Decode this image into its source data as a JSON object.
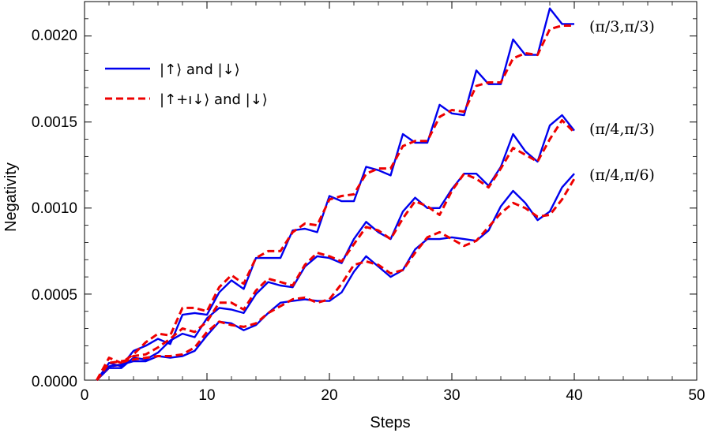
{
  "chart_data": {
    "type": "line",
    "xlabel": "Steps",
    "ylabel": "Negativity",
    "xlim": [
      0,
      50
    ],
    "ylim": [
      0,
      0.0022
    ],
    "xticks": [
      0,
      10,
      20,
      30,
      40,
      50
    ],
    "yticks": [
      0.0,
      0.0005,
      0.001,
      0.0015,
      0.002
    ],
    "xtick_labels": [
      "0",
      "10",
      "20",
      "30",
      "40",
      "50"
    ],
    "ytick_labels": [
      "0.0000",
      "0.0005",
      "0.0010",
      "0.0015",
      "0.0020"
    ],
    "grid": false,
    "legend_position": "top-left",
    "legend": [
      {
        "label": "|↑⟩ and |↓⟩",
        "color": "#0000ee",
        "style": "solid"
      },
      {
        "label": "|↑+ı↓⟩ and |↓⟩",
        "color": "#ee0000",
        "style": "dashed"
      }
    ],
    "annotations": [
      "(π/3,π/3)",
      "(π/4,π/3)",
      "(π/4,π/6)"
    ],
    "x": [
      1,
      2,
      3,
      4,
      5,
      6,
      7,
      8,
      9,
      10,
      11,
      12,
      13,
      14,
      15,
      16,
      17,
      18,
      19,
      20,
      21,
      22,
      23,
      24,
      25,
      26,
      27,
      28,
      29,
      30,
      31,
      32,
      33,
      34,
      35,
      36,
      37,
      38,
      39,
      40
    ],
    "series": [
      {
        "group": "(π/3,π/3)",
        "legend_index": 0,
        "color": "#0000ee",
        "dash": "solid",
        "values": [
          0.0,
          0.0001,
          8e-05,
          0.00017,
          0.0002,
          0.00024,
          0.00021,
          0.00038,
          0.00039,
          0.00038,
          0.00051,
          0.00058,
          0.00053,
          0.00071,
          0.00071,
          0.00071,
          0.00087,
          0.00088,
          0.00086,
          0.00107,
          0.00104,
          0.00104,
          0.00124,
          0.00122,
          0.00119,
          0.00143,
          0.00138,
          0.00138,
          0.0016,
          0.00155,
          0.00154,
          0.0018,
          0.00172,
          0.00172,
          0.00198,
          0.00189,
          0.00189,
          0.00216,
          0.00207,
          0.00207
        ]
      },
      {
        "group": "(π/3,π/3)",
        "legend_index": 1,
        "color": "#ee0000",
        "dash": "dashed",
        "values": [
          0.0,
          0.00013,
          0.0001,
          0.00015,
          0.00022,
          0.00027,
          0.00026,
          0.00042,
          0.00042,
          0.0004,
          0.00054,
          0.00061,
          0.00056,
          0.00071,
          0.00075,
          0.00075,
          0.00086,
          0.00091,
          0.0009,
          0.00105,
          0.00107,
          0.00108,
          0.0012,
          0.00123,
          0.00123,
          0.00136,
          0.00139,
          0.00139,
          0.00153,
          0.00157,
          0.00156,
          0.00171,
          0.00173,
          0.00173,
          0.00187,
          0.0019,
          0.00189,
          0.00204,
          0.00206,
          0.00206
        ]
      },
      {
        "group": "(π/4,π/3)",
        "legend_index": 0,
        "color": "#0000ee",
        "dash": "solid",
        "values": [
          0.0,
          7e-05,
          7e-05,
          0.00013,
          0.00012,
          0.00016,
          0.00023,
          0.00027,
          0.00025,
          0.00036,
          0.00042,
          0.00041,
          0.00039,
          0.0005,
          0.00057,
          0.00055,
          0.00054,
          0.00066,
          0.00072,
          0.00071,
          0.00068,
          0.00082,
          0.00092,
          0.00086,
          0.00082,
          0.00098,
          0.00106,
          0.001,
          0.001,
          0.00111,
          0.0012,
          0.0012,
          0.00113,
          0.00124,
          0.00143,
          0.00133,
          0.00127,
          0.00148,
          0.00154,
          0.00145
        ]
      },
      {
        "group": "(π/4,π/3)",
        "legend_index": 1,
        "color": "#ee0000",
        "dash": "dashed",
        "values": [
          0.0,
          8e-05,
          9e-05,
          0.00014,
          0.00015,
          0.00019,
          0.00024,
          0.0003,
          0.00028,
          0.00034,
          0.00045,
          0.00045,
          0.00041,
          0.00052,
          0.00059,
          0.00057,
          0.00055,
          0.00067,
          0.00074,
          0.00072,
          0.00069,
          0.00079,
          0.00089,
          0.00087,
          0.00082,
          0.00094,
          0.00104,
          0.00101,
          0.00096,
          0.0011,
          0.0012,
          0.00117,
          0.00112,
          0.00123,
          0.00135,
          0.00131,
          0.00127,
          0.0014,
          0.00151,
          0.00144
        ]
      },
      {
        "group": "(π/4,π/6)",
        "legend_index": 0,
        "color": "#0000ee",
        "dash": "solid",
        "values": [
          0.0,
          8e-05,
          9e-05,
          0.00011,
          0.00011,
          0.00014,
          0.00013,
          0.00014,
          0.00017,
          0.00026,
          0.00034,
          0.00033,
          0.00029,
          0.00032,
          0.00039,
          0.00045,
          0.00046,
          0.00047,
          0.00046,
          0.00046,
          0.00051,
          0.00063,
          0.00072,
          0.00066,
          0.0006,
          0.00064,
          0.00076,
          0.00082,
          0.00082,
          0.00083,
          0.00082,
          0.00081,
          0.00087,
          0.00101,
          0.0011,
          0.00103,
          0.00093,
          0.00098,
          0.00112,
          0.0012
        ]
      },
      {
        "group": "(π/4,π/6)",
        "legend_index": 1,
        "color": "#ee0000",
        "dash": "dashed",
        "values": [
          0.0,
          0.0001,
          0.00011,
          0.00012,
          0.00013,
          0.00014,
          0.00014,
          0.00015,
          0.00019,
          0.00028,
          0.00034,
          0.00032,
          0.00031,
          0.00033,
          0.00039,
          0.00043,
          0.00047,
          0.00048,
          0.00045,
          0.00047,
          0.00056,
          0.00067,
          0.00069,
          0.00067,
          0.00062,
          0.00064,
          0.00074,
          0.00083,
          0.00086,
          0.00082,
          0.00078,
          0.00081,
          0.00089,
          0.00097,
          0.00103,
          0.001,
          0.00095,
          0.00096,
          0.00105,
          0.00117
        ]
      }
    ]
  }
}
